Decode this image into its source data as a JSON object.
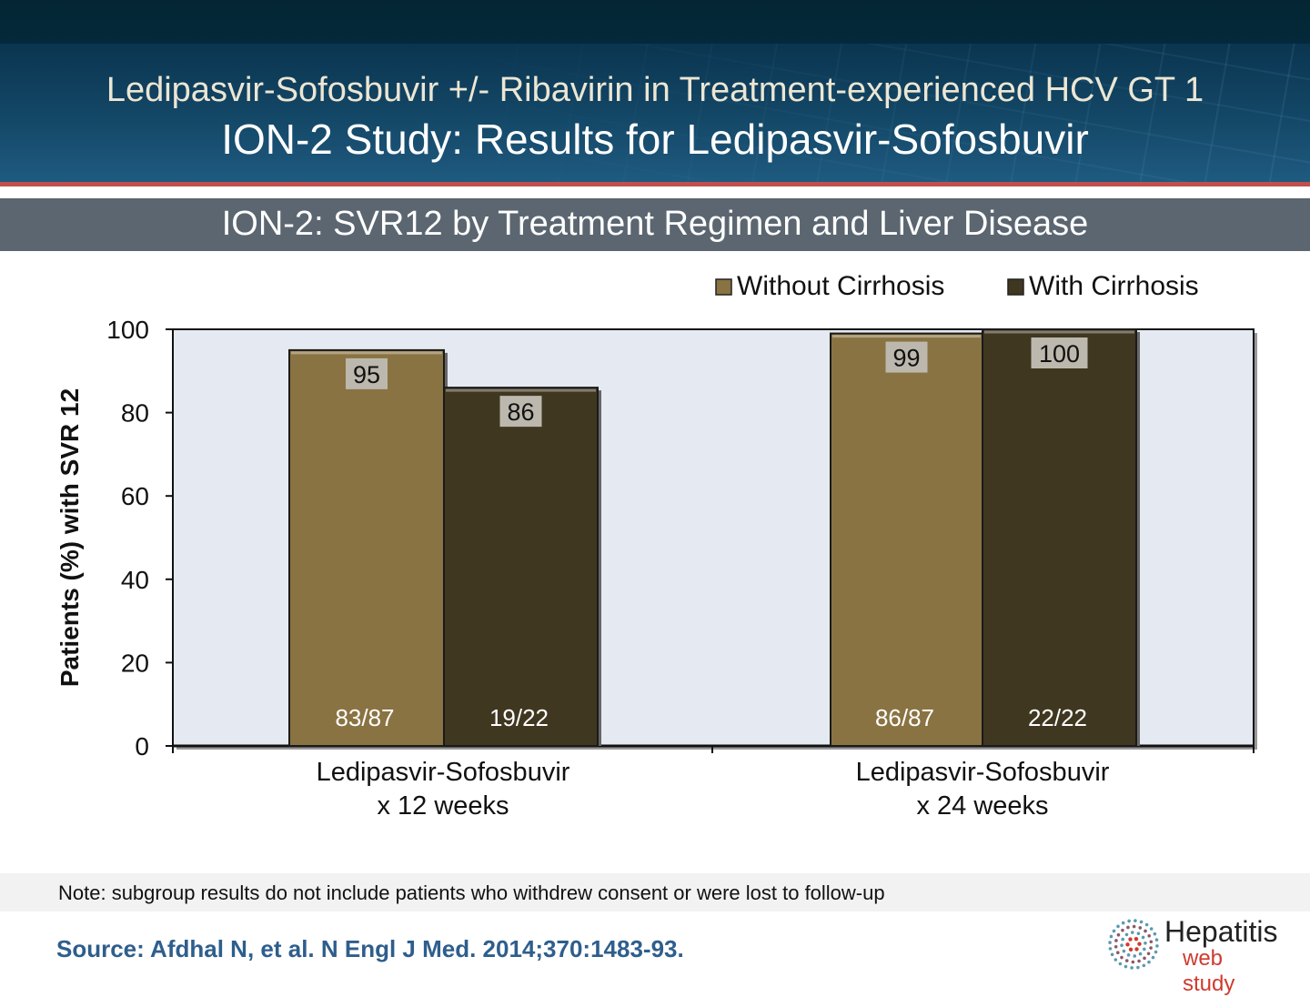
{
  "header": {
    "title_line1": "Ledipasvir-Sofosbuvir +/- Ribavirin in Treatment-experienced HCV GT 1",
    "title_line2": "ION-2 Study: Results for Ledipasvir-Sofosbuvir"
  },
  "subtitle": "ION-2: SVR12 by Treatment Regimen and Liver Disease",
  "chart_data": {
    "type": "bar",
    "title": "ION-2: SVR12 by Treatment Regimen and Liver Disease",
    "ylabel": "Patients (%) with SVR 12",
    "xlabel": "",
    "ylim": [
      0,
      100
    ],
    "yticks": [
      "0",
      "20",
      "40",
      "60",
      "80",
      "100"
    ],
    "categories": [
      [
        "Ledipasvir-Sofosbuvir",
        "x 12 weeks"
      ],
      [
        "Ledipasvir-Sofosbuvir",
        "x 24 weeks"
      ]
    ],
    "legend_position": "top-right",
    "series": [
      {
        "name": "Without Cirrhosis",
        "color": "#8a7342",
        "values": [
          95,
          99
        ],
        "counts": [
          "83/87",
          "86/87"
        ]
      },
      {
        "name": "With Cirrhosis",
        "color": "#403721",
        "values": [
          86,
          100
        ],
        "counts": [
          "19/22",
          "22/22"
        ]
      }
    ],
    "plot_bg": "#e5e9f1"
  },
  "note": "Note: subgroup results do not include patients who withdrew consent or were lost to follow-up",
  "source": "Source: Afdhal N, et al. N Engl J Med. 2014;370:1483-93.",
  "logo": {
    "line1": "Hepatitis",
    "line2": "web study"
  }
}
